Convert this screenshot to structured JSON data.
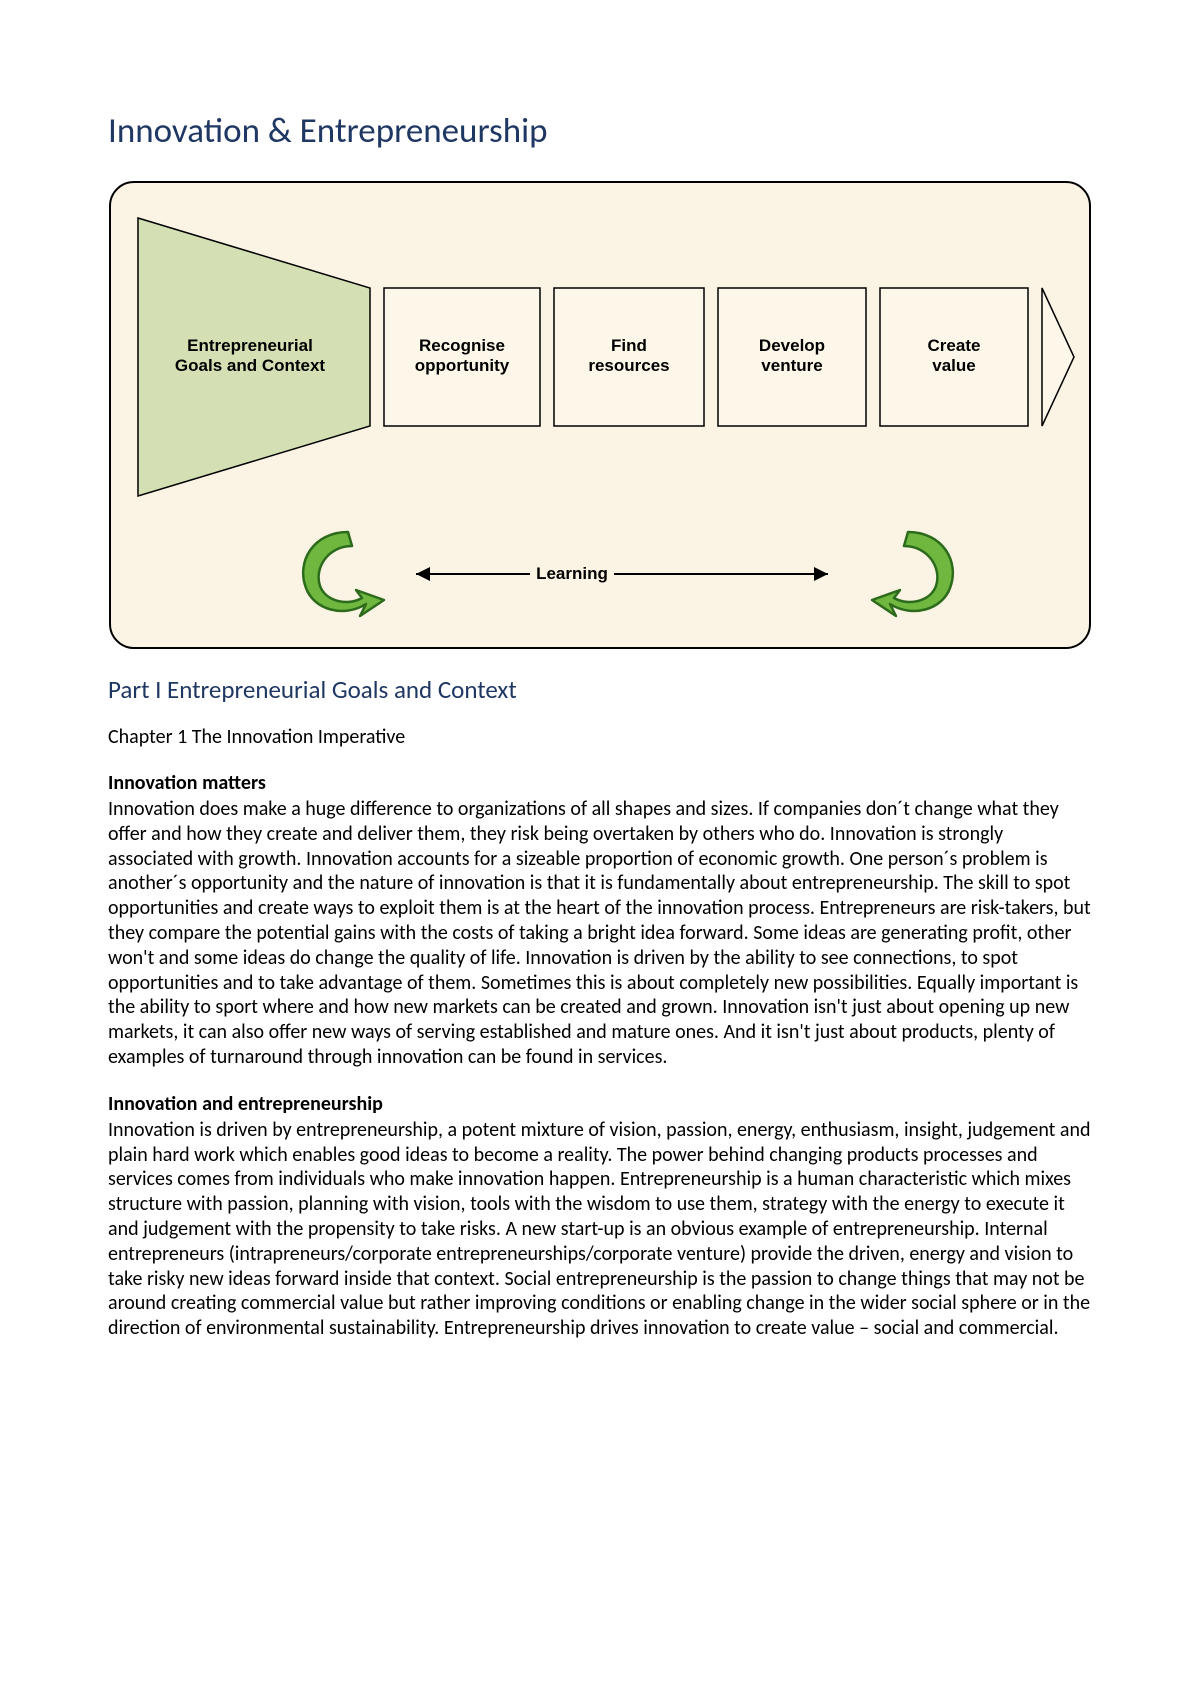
{
  "page_title": "Innovation & Entrepreneurship",
  "section_heading": "Part I Entrepreneurial Goals and Context",
  "chapter_heading": "Chapter 1 The Innovation Imperative",
  "diagram": {
    "type": "flowchart",
    "viewbox_w": 984,
    "viewbox_h": 470,
    "panel": {
      "fill": "#fbf3e3",
      "stroke": "#000000",
      "stroke_width": 2,
      "corner_radius": 24
    },
    "funnel": {
      "fill": "#d4e0b3",
      "stroke": "#000000",
      "stroke_width": 1.5,
      "label1": "Entrepreneurial",
      "label2": "Goals and Context",
      "font_size": 17,
      "font_weight": 700,
      "text_color": "#000000"
    },
    "stages": [
      {
        "label1": "Recognise",
        "label2": "opportunity"
      },
      {
        "label1": "Find",
        "label2": "resources"
      },
      {
        "label1": "Develop",
        "label2": "venture"
      },
      {
        "label1": "Create",
        "label2": "value"
      }
    ],
    "stage_box": {
      "fill": "#fdf7e9",
      "stroke": "#000000",
      "stroke_width": 1.5,
      "font_size": 17,
      "font_weight": 700,
      "text_color": "#000000"
    },
    "arrow_head": {
      "fill": "#fdf7e9",
      "stroke": "#000000",
      "stroke_width": 1.5
    },
    "learning": {
      "label": "Learning",
      "font_size": 17,
      "font_weight": 700,
      "text_color": "#000000",
      "line_color": "#000000",
      "line_width": 2
    },
    "loop_arrow": {
      "fill": "#6fb73f",
      "stroke": "#2d6b1c",
      "stroke_width": 2.5
    }
  },
  "sections": [
    {
      "heading": "Innovation matters",
      "body": "Innovation does make a huge difference to organizations of all shapes and sizes. If companies don´t change what they offer and how they create and deliver them, they risk being overtaken by others who do. Innovation is strongly associated with growth. Innovation accounts for a sizeable proportion of economic growth. One person´s problem is another´s opportunity and the nature of innovation is that it is fundamentally about entrepreneurship. The skill to spot opportunities and create ways to exploit them is at the heart of the innovation process. Entrepreneurs are risk-takers, but they compare the potential gains with the  costs of taking a bright idea forward. Some ideas are generating profit, other won't and some ideas do change the quality of life. Innovation is driven by the ability to see connections, to spot opportunities and to take advantage of them. Sometimes this is about completely new possibilities. Equally important is the ability to sport where and how new markets can be created and grown. Innovation isn't just about opening up new markets, it can also offer new ways of serving established and mature ones. And it isn't just about products, plenty of examples of turnaround through innovation can be found in services."
    },
    {
      "heading": "Innovation and entrepreneurship",
      "body": "Innovation is driven by entrepreneurship, a potent mixture of vision, passion, energy, enthusiasm, insight, judgement and plain hard work which enables good ideas to become a reality. The power behind changing products processes and services comes from individuals who make innovation happen. Entrepreneurship is a human characteristic which mixes structure with passion, planning with vision, tools with the wisdom to use them, strategy with the energy to execute it and judgement with the propensity to take risks. A new start-up is an obvious example of entrepreneurship. Internal entrepreneurs (intrapreneurs/corporate entrepreneurships/corporate venture) provide the driven, energy and vision to take risky new ideas forward inside that context. Social entrepreneurship is the passion to change things that may not be around creating commercial value but rather improving conditions or enabling change in the wider social sphere or in the direction of environmental sustainability. Entrepreneurship drives innovation to create value – social and commercial."
    }
  ]
}
